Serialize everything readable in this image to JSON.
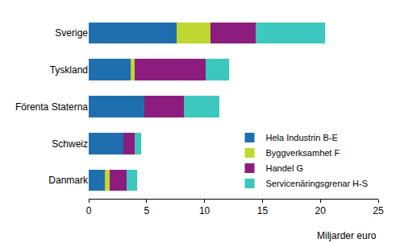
{
  "chart_data": {
    "type": "bar",
    "orientation": "horizontal",
    "stacked": true,
    "categories": [
      "Sverige",
      "Tyskland",
      "Förenta Staterna",
      "Schweiz",
      "Danmark"
    ],
    "series": [
      {
        "name": "Hela Industrin B-E",
        "color": "#1f6fae",
        "values": [
          7.6,
          3.6,
          4.8,
          3.0,
          1.4
        ]
      },
      {
        "name": "Byggverksamhet F",
        "color": "#bfd730",
        "values": [
          2.9,
          0.4,
          0.0,
          0.0,
          0.4
        ]
      },
      {
        "name": "Handel G",
        "color": "#8c1d7f",
        "values": [
          3.9,
          6.1,
          3.4,
          1.0,
          1.5
        ]
      },
      {
        "name": "Servicenäringsgrenar H-S",
        "color": "#3cc8bc",
        "values": [
          6.0,
          2.0,
          3.1,
          0.5,
          0.9
        ]
      }
    ],
    "xlabel": "Miljarder euro",
    "xlim": [
      0,
      25
    ],
    "xticks": [
      0,
      5,
      10,
      15,
      20,
      25
    ],
    "grid": false,
    "legend": "lower right"
  }
}
